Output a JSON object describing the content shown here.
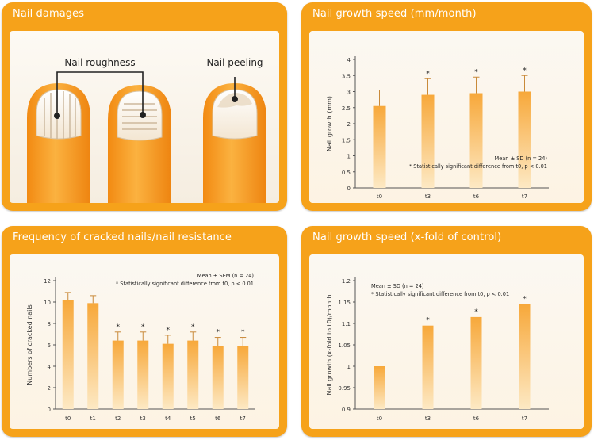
{
  "panels": {
    "damages": {
      "title": "Nail damages",
      "labels": {
        "roughness": "Nail roughness",
        "peeling": "Nail peeling"
      }
    },
    "growth_mm": {
      "title": "Nail growth speed (mm/month)"
    },
    "cracked": {
      "title": "Frequency of cracked nails/nail resistance"
    },
    "growth_fold": {
      "title": "Nail growth speed (x-fold of control)"
    }
  },
  "chart_data": [
    {
      "id": "growth_mm",
      "type": "bar",
      "categories": [
        "t0",
        "t3",
        "t6",
        "t7"
      ],
      "values": [
        2.55,
        2.9,
        2.95,
        3.0
      ],
      "errors": [
        0.5,
        0.5,
        0.5,
        0.5
      ],
      "significant": [
        false,
        true,
        true,
        true
      ],
      "ylabel": "Nail growth (mm)",
      "ylim": [
        0,
        4
      ],
      "yticks": [
        "0",
        "0.5",
        "1",
        "1.5",
        "2",
        "2.5",
        "3",
        "3.5",
        "4"
      ],
      "notes": [
        "Mean ± SD (n = 24)",
        "* Statistically significant difference from t0, p < 0.01"
      ]
    },
    {
      "id": "cracked",
      "type": "bar",
      "categories": [
        "t0",
        "t1",
        "t2",
        "t3",
        "t4",
        "t5",
        "t6",
        "t7"
      ],
      "values": [
        10.2,
        9.9,
        6.4,
        6.4,
        6.1,
        6.4,
        5.9,
        5.9
      ],
      "errors": [
        0.7,
        0.7,
        0.8,
        0.8,
        0.8,
        0.8,
        0.8,
        0.8
      ],
      "significant": [
        false,
        false,
        true,
        true,
        true,
        true,
        true,
        true
      ],
      "ylabel": "Numbers of cracked nails",
      "ylim": [
        0,
        12
      ],
      "yticks": [
        "0",
        "2",
        "4",
        "6",
        "8",
        "10",
        "12"
      ],
      "notes": [
        "Mean ± SEM (n = 24)",
        "* Statistically significant difference from t0, p < 0.01"
      ]
    },
    {
      "id": "growth_fold",
      "type": "bar",
      "categories": [
        "t0",
        "t3",
        "t6",
        "t7"
      ],
      "values": [
        1.0,
        1.095,
        1.115,
        1.145
      ],
      "errors": [
        0,
        0,
        0,
        0
      ],
      "significant": [
        false,
        true,
        true,
        true
      ],
      "ylabel": "Nail growth (x-fold to t0)/month",
      "ylim": [
        0.9,
        1.2
      ],
      "yticks": [
        "0.9",
        "0.95",
        "1",
        "1.05",
        "1.1",
        "1.15",
        "1.2"
      ],
      "notes": [
        "Mean ± SD (n = 24)",
        "* Statistically significant difference from t0, p < 0.01"
      ]
    }
  ],
  "colors": {
    "panel": "#f6a21a",
    "bar_top": "#f7a83a",
    "bar_bottom": "#fde9c4",
    "skin": "#f79a1e"
  }
}
